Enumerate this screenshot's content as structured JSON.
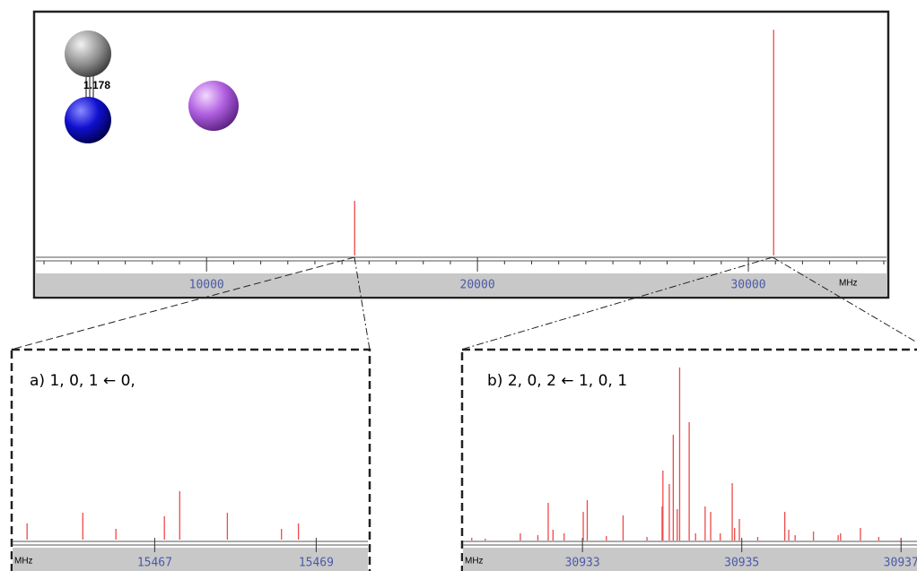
{
  "chart_data": [
    {
      "type": "stick",
      "color": "#f04848",
      "xlabel": "MHz",
      "annotations": [
        "1.178"
      ],
      "x": [
        15467.3,
        30934.2
      ],
      "values": [
        23,
        95
      ],
      "xlim": [
        3700,
        35100
      ],
      "ylim": [
        0,
        100
      ],
      "xticks": [
        10000,
        20000,
        30000
      ],
      "minor_xticks": [
        4000,
        5000,
        6000,
        7000,
        8000,
        9000,
        11000,
        12000,
        13000,
        14000,
        15000,
        16000,
        17000,
        18000,
        19000,
        21000,
        22000,
        23000,
        24000,
        25000,
        26000,
        27000,
        28000,
        29000,
        31000,
        32000,
        33000,
        34000,
        35000
      ]
    },
    {
      "type": "stick",
      "color": "#f04848",
      "title": "a) 1, 0, 1 ← 0,",
      "xlabel": "MHz",
      "x": [
        15465.42,
        15466.11,
        15466.52,
        15467.12,
        15467.31,
        15467.9,
        15468.57,
        15468.78
      ],
      "values": [
        18,
        30,
        12,
        26,
        54,
        30,
        12,
        18
      ],
      "xlim": [
        15465.24,
        15469.64
      ],
      "ylim": [
        0,
        200
      ],
      "xticks": [
        15467,
        15469
      ]
    },
    {
      "type": "stick",
      "color": "#f04848",
      "title": "b) 2, 0, 2 ← 1, 0, 1",
      "xlabel": "MHz",
      "x": [
        30931.61,
        30931.78,
        30932.22,
        30932.44,
        30932.57,
        30932.63,
        30932.77,
        30933.01,
        30933.06,
        30933.3,
        30933.51,
        30933.81,
        30934.0,
        30934.01,
        30934.09,
        30934.14,
        30934.19,
        30934.22,
        30934.34,
        30934.42,
        30934.54,
        30934.61,
        30934.73,
        30934.88,
        30934.91,
        30934.97,
        30935.2,
        30935.54,
        30935.59,
        30935.67,
        30935.9,
        30936.21,
        30936.24,
        30936.49,
        30936.72,
        30937.0
      ],
      "values": [
        3,
        2,
        8,
        6,
        42,
        12,
        8,
        32,
        45,
        5,
        28,
        4,
        38,
        78,
        63,
        118,
        35,
        193,
        132,
        8,
        38,
        32,
        8,
        64,
        14,
        24,
        4,
        32,
        12,
        6,
        10,
        6,
        8,
        14,
        4,
        3
      ],
      "xlim": [
        30931.5,
        30937.2
      ],
      "ylim": [
        0,
        200
      ],
      "xticks": [
        30933,
        30935,
        30937
      ]
    }
  ]
}
